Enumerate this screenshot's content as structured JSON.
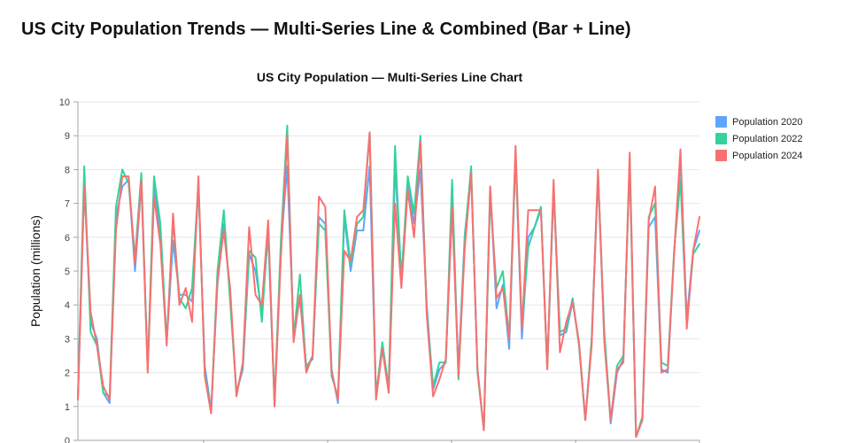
{
  "page": {
    "title": "US City Population Trends — Multi-Series Line & Combined (Bar + Line)"
  },
  "chart_data": {
    "type": "line",
    "title": "US City Population — Multi-Series Line Chart",
    "xlabel": "",
    "ylabel": "Population (millions)",
    "ylim": [
      0,
      10
    ],
    "yticks": [
      "0",
      "1",
      "2",
      "3",
      "4",
      "5",
      "6",
      "7",
      "8",
      "9",
      "10"
    ],
    "grid": true,
    "legend_position": "top-right",
    "series": [
      {
        "name": "Population 2020",
        "color": "#60a5fa",
        "values": [
          1.2,
          7.6,
          3.5,
          3.0,
          1.4,
          1.1,
          6.6,
          7.5,
          7.7,
          5.0,
          7.6,
          2.1,
          7.5,
          6.0,
          2.9,
          5.9,
          4.3,
          4.3,
          4.1,
          7.5,
          2.2,
          0.9,
          4.6,
          6.4,
          4.3,
          1.4,
          2.1,
          5.5,
          5.0,
          3.8,
          6.1,
          1.1,
          5.7,
          8.1,
          3.2,
          4.2,
          2.2,
          2.4,
          6.6,
          6.4,
          2.1,
          1.1,
          6.6,
          5.0,
          6.2,
          6.2,
          8.1,
          1.3,
          2.8,
          1.6,
          8.1,
          4.8,
          7.6,
          6.4,
          8.0,
          4.0,
          1.5,
          2.1,
          2.3,
          6.9,
          2.1,
          6.1,
          7.9,
          2.1,
          0.3,
          7.5,
          3.9,
          4.6,
          2.7,
          8.5,
          3.0,
          6.0,
          6.3,
          6.8,
          2.2,
          7.4,
          3.1,
          3.2,
          4.1,
          2.9,
          0.6,
          2.9,
          7.8,
          3.0,
          0.5,
          2.0,
          2.4,
          8.3,
          0.1,
          0.6,
          6.3,
          6.6,
          2.1,
          2.0,
          5.5,
          8.3,
          3.6,
          5.6,
          6.2
        ]
      },
      {
        "name": "Population 2022",
        "color": "#34d399",
        "values": [
          1.3,
          8.1,
          3.2,
          2.8,
          1.4,
          1.3,
          6.9,
          8.0,
          7.6,
          5.4,
          7.9,
          2.1,
          7.8,
          6.4,
          2.9,
          6.5,
          4.2,
          3.9,
          4.5,
          7.6,
          2.0,
          0.8,
          5.0,
          6.8,
          4.1,
          1.4,
          2.2,
          5.6,
          5.4,
          3.5,
          6.3,
          1.1,
          5.9,
          9.3,
          3.0,
          4.9,
          2.1,
          2.5,
          6.4,
          6.2,
          1.9,
          1.3,
          6.8,
          5.2,
          6.4,
          6.6,
          9.1,
          1.3,
          2.9,
          1.5,
          8.7,
          4.7,
          7.8,
          6.7,
          9.0,
          3.8,
          1.6,
          2.3,
          2.3,
          7.7,
          1.8,
          6.0,
          8.1,
          2.0,
          0.3,
          7.2,
          4.5,
          5.0,
          3.0,
          8.4,
          3.3,
          5.7,
          6.3,
          6.9,
          2.1,
          7.5,
          3.2,
          3.3,
          4.2,
          2.8,
          0.6,
          3.0,
          7.9,
          3.2,
          0.6,
          2.2,
          2.5,
          8.2,
          0.1,
          0.7,
          6.6,
          7.0,
          2.3,
          2.2,
          5.6,
          7.7,
          3.4,
          5.5,
          5.8
        ]
      },
      {
        "name": "Population 2024",
        "color": "#f87171",
        "values": [
          1.2,
          7.5,
          3.8,
          2.8,
          1.6,
          1.2,
          6.2,
          7.8,
          7.8,
          5.2,
          7.7,
          2.0,
          7.2,
          5.8,
          2.8,
          6.7,
          4.0,
          4.5,
          3.5,
          7.8,
          1.9,
          0.8,
          4.7,
          6.2,
          4.5,
          1.3,
          2.3,
          6.3,
          4.3,
          4.0,
          6.5,
          1.0,
          5.4,
          9.0,
          2.9,
          4.3,
          2.0,
          2.5,
          7.2,
          6.9,
          2.0,
          1.2,
          5.6,
          5.3,
          6.6,
          6.8,
          9.1,
          1.2,
          2.7,
          1.4,
          7.0,
          4.5,
          7.4,
          6.0,
          8.8,
          3.7,
          1.3,
          1.8,
          2.4,
          6.9,
          1.9,
          5.7,
          7.9,
          2.1,
          0.3,
          7.5,
          4.2,
          4.5,
          3.0,
          8.7,
          3.3,
          6.8,
          6.8,
          6.8,
          2.1,
          7.7,
          2.6,
          3.5,
          4.1,
          2.9,
          0.6,
          2.8,
          8.0,
          2.9,
          0.6,
          2.1,
          2.3,
          8.5,
          0.1,
          0.6,
          6.5,
          7.5,
          2.0,
          2.1,
          5.5,
          8.6,
          3.3,
          5.6,
          6.6
        ]
      }
    ]
  }
}
